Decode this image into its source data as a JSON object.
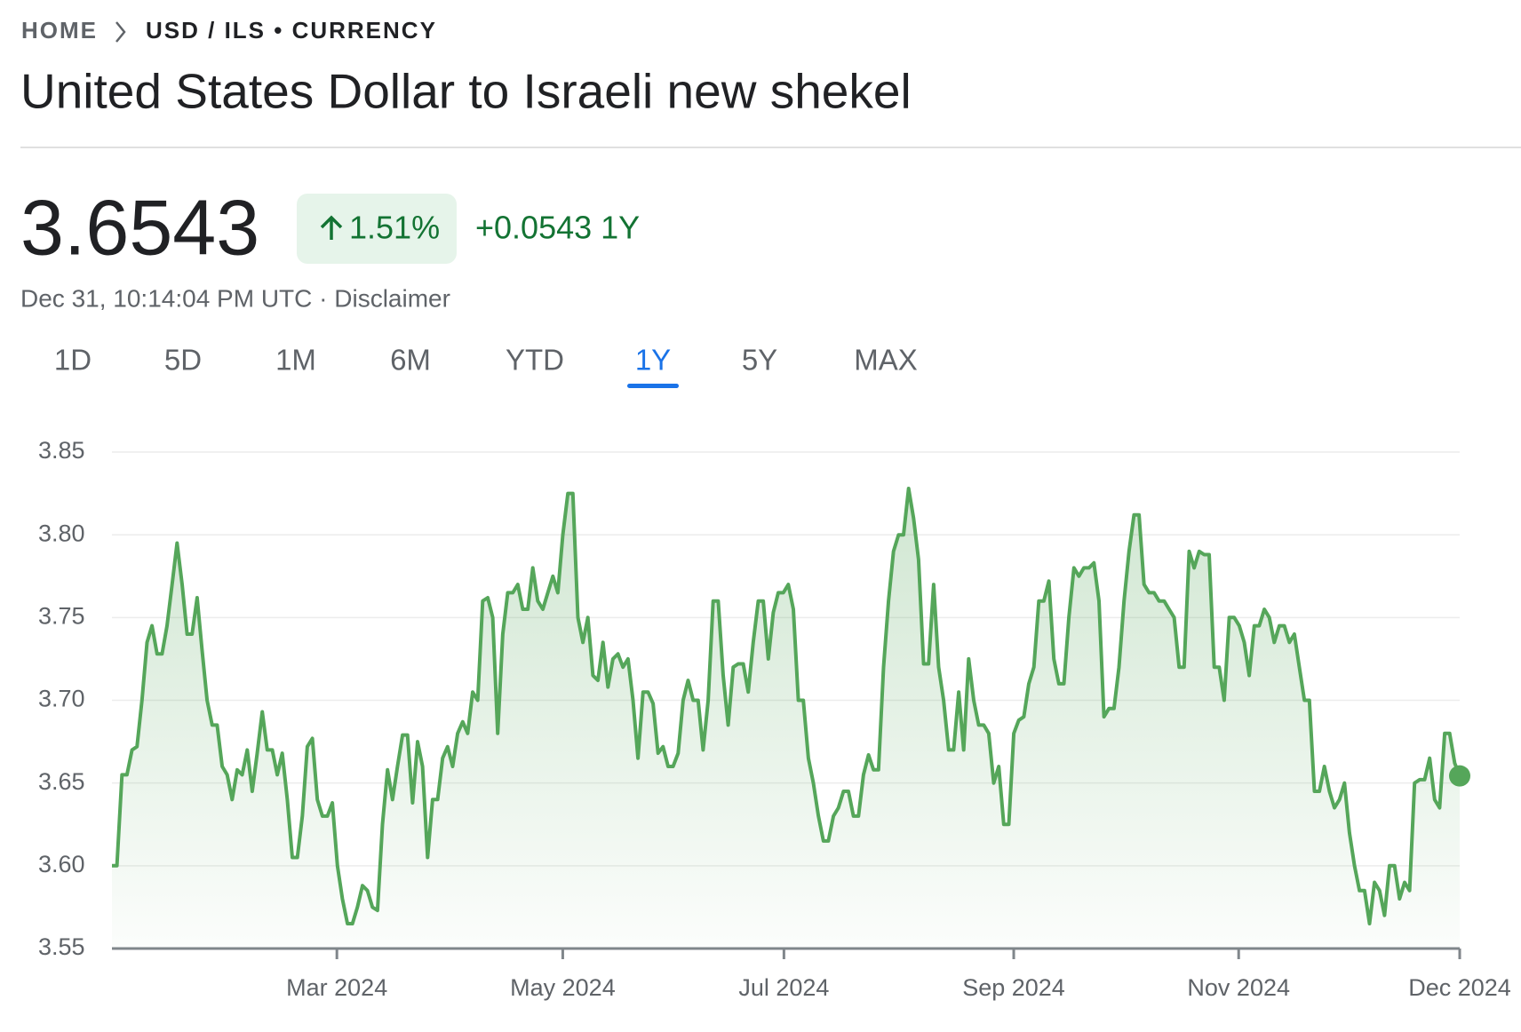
{
  "breadcrumb": {
    "home": "HOME",
    "current": "USD / ILS • CURRENCY"
  },
  "title": "United States Dollar to Israeli new shekel",
  "price": "3.6543",
  "change_percent": "1.51%",
  "change_abs": "+0.0543 1Y",
  "timestamp": "Dec 31, 10:14:04 PM UTC · Disclaimer",
  "tabs": [
    {
      "label": "1D"
    },
    {
      "label": "5D"
    },
    {
      "label": "1M"
    },
    {
      "label": "6M"
    },
    {
      "label": "YTD"
    },
    {
      "label": "1Y",
      "selected": true
    },
    {
      "label": "5Y"
    },
    {
      "label": "MAX"
    }
  ],
  "chart_data": {
    "type": "line",
    "xticks": [
      "Mar 2024",
      "May 2024",
      "Jul 2024",
      "Sep 2024",
      "Nov 2024",
      "Dec 2024"
    ],
    "ylim": [
      3.55,
      3.85
    ],
    "yticks": [
      3.55,
      {
        "value": 3.6,
        "label": "3.60"
      },
      3.65,
      {
        "value": 3.7,
        "label": "3.70"
      },
      3.75,
      {
        "value": 3.8,
        "label": "3.80"
      },
      3.85
    ],
    "grid": true,
    "series": [
      {
        "color": "#55a65a",
        "values": [
          3.6,
          3.6,
          3.655,
          3.655,
          3.67,
          3.672,
          3.7,
          3.735,
          3.745,
          3.728,
          3.728,
          3.745,
          3.77,
          3.795,
          3.77,
          3.74,
          3.74,
          3.762,
          3.73,
          3.7,
          3.685,
          3.685,
          3.66,
          3.655,
          3.64,
          3.658,
          3.655,
          3.67,
          3.645,
          3.668,
          3.693,
          3.67,
          3.67,
          3.655,
          3.668,
          3.64,
          3.605,
          3.605,
          3.63,
          3.672,
          3.677,
          3.64,
          3.63,
          3.63,
          3.638,
          3.6,
          3.58,
          3.565,
          3.565,
          3.575,
          3.588,
          3.585,
          3.575,
          3.573,
          3.625,
          3.658,
          3.64,
          3.66,
          3.679,
          3.679,
          3.638,
          3.675,
          3.66,
          3.605,
          3.64,
          3.64,
          3.665,
          3.672,
          3.66,
          3.68,
          3.687,
          3.68,
          3.705,
          3.7,
          3.76,
          3.762,
          3.75,
          3.68,
          3.74,
          3.765,
          3.765,
          3.77,
          3.755,
          3.755,
          3.78,
          3.76,
          3.755,
          3.765,
          3.775,
          3.765,
          3.8,
          3.825,
          3.825,
          3.75,
          3.735,
          3.75,
          3.715,
          3.712,
          3.735,
          3.708,
          3.725,
          3.728,
          3.72,
          3.725,
          3.7,
          3.665,
          3.705,
          3.705,
          3.698,
          3.668,
          3.672,
          3.66,
          3.66,
          3.668,
          3.7,
          3.712,
          3.7,
          3.7,
          3.67,
          3.7,
          3.76,
          3.76,
          3.715,
          3.685,
          3.72,
          3.722,
          3.722,
          3.705,
          3.735,
          3.76,
          3.76,
          3.725,
          3.753,
          3.765,
          3.765,
          3.77,
          3.755,
          3.7,
          3.7,
          3.665,
          3.65,
          3.63,
          3.615,
          3.615,
          3.63,
          3.635,
          3.645,
          3.645,
          3.63,
          3.63,
          3.655,
          3.667,
          3.658,
          3.658,
          3.72,
          3.76,
          3.79,
          3.8,
          3.8,
          3.828,
          3.81,
          3.785,
          3.722,
          3.722,
          3.77,
          3.72,
          3.7,
          3.67,
          3.67,
          3.705,
          3.67,
          3.725,
          3.7,
          3.685,
          3.685,
          3.68,
          3.65,
          3.66,
          3.625,
          3.625,
          3.68,
          3.688,
          3.69,
          3.71,
          3.72,
          3.76,
          3.76,
          3.772,
          3.725,
          3.71,
          3.71,
          3.75,
          3.78,
          3.775,
          3.78,
          3.78,
          3.783,
          3.76,
          3.69,
          3.695,
          3.695,
          3.72,
          3.76,
          3.79,
          3.812,
          3.812,
          3.77,
          3.765,
          3.765,
          3.76,
          3.76,
          3.755,
          3.75,
          3.72,
          3.72,
          3.79,
          3.78,
          3.79,
          3.788,
          3.788,
          3.72,
          3.72,
          3.7,
          3.75,
          3.75,
          3.745,
          3.735,
          3.715,
          3.745,
          3.745,
          3.755,
          3.75,
          3.735,
          3.745,
          3.745,
          3.735,
          3.74,
          3.72,
          3.7,
          3.7,
          3.645,
          3.645,
          3.66,
          3.645,
          3.635,
          3.64,
          3.65,
          3.62,
          3.6,
          3.585,
          3.585,
          3.565,
          3.59,
          3.585,
          3.57,
          3.6,
          3.6,
          3.58,
          3.59,
          3.585,
          3.65,
          3.652,
          3.652,
          3.665,
          3.64,
          3.635,
          3.68,
          3.68,
          3.662,
          3.6543
        ]
      }
    ]
  }
}
